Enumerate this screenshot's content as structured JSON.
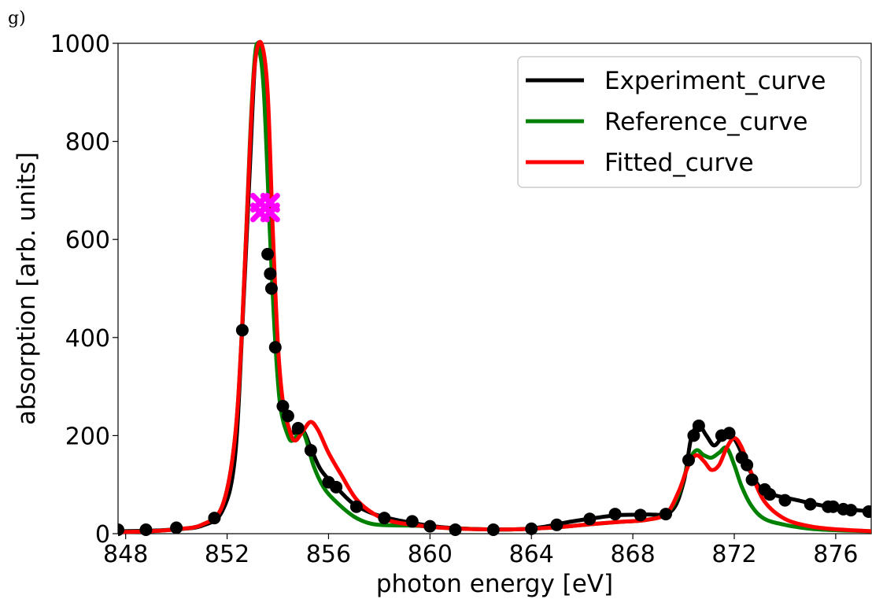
{
  "panel_label": "g)",
  "chart_data": {
    "type": "line",
    "title": "",
    "xlabel": "photon energy [eV]",
    "ylabel": "absorption [arb. units]",
    "xlim": [
      847.7,
      877.4
    ],
    "ylim": [
      0,
      1000
    ],
    "xticks": [
      848,
      852,
      856,
      860,
      864,
      868,
      872,
      876
    ],
    "yticks": [
      0,
      200,
      400,
      600,
      800,
      1000
    ],
    "grid": false,
    "legend_position": "top-right",
    "series": [
      {
        "name": "Experiment_curve",
        "color": "#000000",
        "points": [
          [
            847.7,
            5
          ],
          [
            849,
            6
          ],
          [
            850,
            9
          ],
          [
            851,
            16
          ],
          [
            851.8,
            45
          ],
          [
            852.3,
            150
          ],
          [
            852.6,
            420
          ],
          [
            852.9,
            750
          ],
          [
            853.1,
            960
          ],
          [
            853.3,
            1000
          ],
          [
            853.5,
            930
          ],
          [
            853.7,
            650
          ],
          [
            853.9,
            400
          ],
          [
            854.1,
            270
          ],
          [
            854.4,
            215
          ],
          [
            854.7,
            205
          ],
          [
            855,
            210
          ],
          [
            855.3,
            175
          ],
          [
            855.7,
            130
          ],
          [
            856.3,
            95
          ],
          [
            857,
            60
          ],
          [
            857.8,
            40
          ],
          [
            858.5,
            30
          ],
          [
            859.5,
            20
          ],
          [
            860.5,
            13
          ],
          [
            862,
            9
          ],
          [
            863.5,
            9
          ],
          [
            864.5,
            14
          ],
          [
            865.5,
            24
          ],
          [
            866.5,
            32
          ],
          [
            867.5,
            38
          ],
          [
            868.5,
            39
          ],
          [
            869.5,
            45
          ],
          [
            870,
            105
          ],
          [
            870.3,
            195
          ],
          [
            870.6,
            220
          ],
          [
            870.9,
            200
          ],
          [
            871.2,
            180
          ],
          [
            871.5,
            195
          ],
          [
            871.8,
            205
          ],
          [
            872.1,
            185
          ],
          [
            872.5,
            140
          ],
          [
            873,
            95
          ],
          [
            873.5,
            80
          ],
          [
            874.5,
            68
          ],
          [
            875.5,
            57
          ],
          [
            876.5,
            50
          ],
          [
            877.4,
            45
          ]
        ]
      },
      {
        "name": "Reference_curve",
        "color": "#008000",
        "points": [
          [
            847.7,
            3
          ],
          [
            849,
            5
          ],
          [
            850,
            9
          ],
          [
            851,
            18
          ],
          [
            851.8,
            55
          ],
          [
            852.3,
            190
          ],
          [
            852.6,
            430
          ],
          [
            852.9,
            800
          ],
          [
            853.1,
            975
          ],
          [
            853.25,
            990
          ],
          [
            853.45,
            900
          ],
          [
            853.7,
            600
          ],
          [
            853.9,
            390
          ],
          [
            854.1,
            260
          ],
          [
            854.4,
            200
          ],
          [
            854.6,
            190
          ],
          [
            854.9,
            210
          ],
          [
            855.1,
            195
          ],
          [
            855.4,
            140
          ],
          [
            855.8,
            95
          ],
          [
            856.3,
            65
          ],
          [
            857,
            35
          ],
          [
            857.7,
            20
          ],
          [
            858.5,
            17
          ],
          [
            859.5,
            16
          ],
          [
            860.5,
            12
          ],
          [
            862,
            9
          ],
          [
            863.5,
            9
          ],
          [
            865,
            13
          ],
          [
            866.5,
            20
          ],
          [
            867.5,
            24
          ],
          [
            868.5,
            28
          ],
          [
            869.3,
            40
          ],
          [
            869.8,
            80
          ],
          [
            870.2,
            145
          ],
          [
            870.5,
            170
          ],
          [
            870.8,
            160
          ],
          [
            871.1,
            155
          ],
          [
            871.4,
            165
          ],
          [
            871.7,
            175
          ],
          [
            872,
            140
          ],
          [
            872.3,
            95
          ],
          [
            872.7,
            55
          ],
          [
            873.2,
            30
          ],
          [
            874,
            18
          ],
          [
            875,
            10
          ],
          [
            876,
            7
          ],
          [
            877.4,
            5
          ]
        ]
      },
      {
        "name": "Fitted_curve",
        "color": "#ff0000",
        "points": [
          [
            847.7,
            3
          ],
          [
            849,
            5
          ],
          [
            850,
            9
          ],
          [
            851,
            18
          ],
          [
            851.8,
            55
          ],
          [
            852.3,
            190
          ],
          [
            852.6,
            430
          ],
          [
            852.9,
            790
          ],
          [
            853.1,
            960
          ],
          [
            853.35,
            1000
          ],
          [
            853.6,
            900
          ],
          [
            853.8,
            620
          ],
          [
            854,
            390
          ],
          [
            854.2,
            270
          ],
          [
            854.5,
            205
          ],
          [
            854.7,
            190
          ],
          [
            855,
            210
          ],
          [
            855.3,
            228
          ],
          [
            855.6,
            210
          ],
          [
            856,
            165
          ],
          [
            856.5,
            120
          ],
          [
            857.1,
            70
          ],
          [
            857.8,
            40
          ],
          [
            858.5,
            25
          ],
          [
            859.5,
            17
          ],
          [
            860.5,
            12
          ],
          [
            862,
            9
          ],
          [
            863.5,
            9
          ],
          [
            865,
            13
          ],
          [
            866.5,
            20
          ],
          [
            867.5,
            24
          ],
          [
            868.5,
            28
          ],
          [
            869.3,
            40
          ],
          [
            869.8,
            85
          ],
          [
            870.2,
            140
          ],
          [
            870.5,
            160
          ],
          [
            870.8,
            148
          ],
          [
            871.1,
            130
          ],
          [
            871.4,
            140
          ],
          [
            871.7,
            175
          ],
          [
            872,
            195
          ],
          [
            872.3,
            175
          ],
          [
            872.7,
            120
          ],
          [
            873.2,
            65
          ],
          [
            874,
            30
          ],
          [
            875,
            15
          ],
          [
            876,
            9
          ],
          [
            877.4,
            5
          ]
        ]
      }
    ],
    "scatter": [
      {
        "marker": "circle",
        "color": "#000000",
        "points": [
          [
            847.7,
            8
          ],
          [
            848.8,
            8
          ],
          [
            850,
            12
          ],
          [
            851.5,
            32
          ],
          [
            852.6,
            415
          ],
          [
            853.6,
            570
          ],
          [
            853.7,
            530
          ],
          [
            853.75,
            500
          ],
          [
            853.9,
            380
          ],
          [
            854.2,
            260
          ],
          [
            854.4,
            240
          ],
          [
            854.8,
            215
          ],
          [
            855.3,
            170
          ],
          [
            856,
            105
          ],
          [
            856.3,
            95
          ],
          [
            857.1,
            55
          ],
          [
            858.2,
            32
          ],
          [
            859.3,
            25
          ],
          [
            860,
            15
          ],
          [
            861,
            8
          ],
          [
            862.5,
            8
          ],
          [
            864,
            10
          ],
          [
            865,
            18
          ],
          [
            866.3,
            30
          ],
          [
            867.3,
            40
          ],
          [
            868.3,
            38
          ],
          [
            869.3,
            40
          ],
          [
            870.2,
            150
          ],
          [
            870.4,
            200
          ],
          [
            870.6,
            220
          ],
          [
            871.5,
            200
          ],
          [
            871.8,
            205
          ],
          [
            872.3,
            155
          ],
          [
            872.5,
            140
          ],
          [
            872.7,
            110
          ],
          [
            873.2,
            90
          ],
          [
            873.4,
            80
          ],
          [
            874,
            68
          ],
          [
            875,
            60
          ],
          [
            875.7,
            55
          ],
          [
            875.9,
            55
          ],
          [
            876.3,
            50
          ],
          [
            876.6,
            48
          ],
          [
            877.3,
            45
          ]
        ]
      },
      {
        "marker": "cross",
        "color": "#ff00ff",
        "points": [
          [
            853.3,
            675
          ],
          [
            853.7,
            675
          ],
          [
            853.3,
            655
          ],
          [
            853.7,
            655
          ]
        ]
      }
    ],
    "legend": [
      "Experiment_curve",
      "Reference_curve",
      "Fitted_curve"
    ]
  }
}
